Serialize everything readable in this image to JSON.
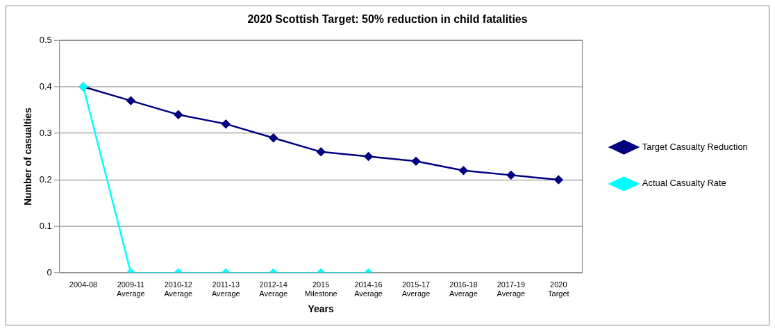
{
  "chart_data": {
    "type": "line",
    "title": "2020 Scottish Target: 50% reduction in child fatalities",
    "xlabel": "Years",
    "ylabel": "Number of casualties",
    "categories": [
      "2004-08",
      "2009-11\nAverage",
      "2010-12\nAverage",
      "2011-13\nAverage",
      "2012-14\nAverage",
      "2015\nMilestone",
      "2014-16\nAverage",
      "2015-17\nAverage",
      "2016-18\nAverage",
      "2017-19\nAverage",
      "2020\nTarget"
    ],
    "series": [
      {
        "name": "Target Casualty Reduction",
        "color": "#000080",
        "values": [
          0.4,
          0.37,
          0.34,
          0.32,
          0.29,
          0.26,
          0.25,
          0.24,
          0.22,
          0.21,
          0.2
        ]
      },
      {
        "name": "Actual Casualty Rate",
        "color": "#00ffff",
        "values": [
          0.4,
          0,
          0,
          0,
          0,
          0,
          0,
          null,
          null,
          null,
          null
        ]
      }
    ],
    "ylim": [
      0,
      0.5
    ],
    "yticks": [
      0,
      0.1,
      0.2,
      0.3,
      0.4,
      0.5
    ],
    "grid": "y",
    "legend": "right",
    "marker": "diamond",
    "line_style": "solid"
  }
}
